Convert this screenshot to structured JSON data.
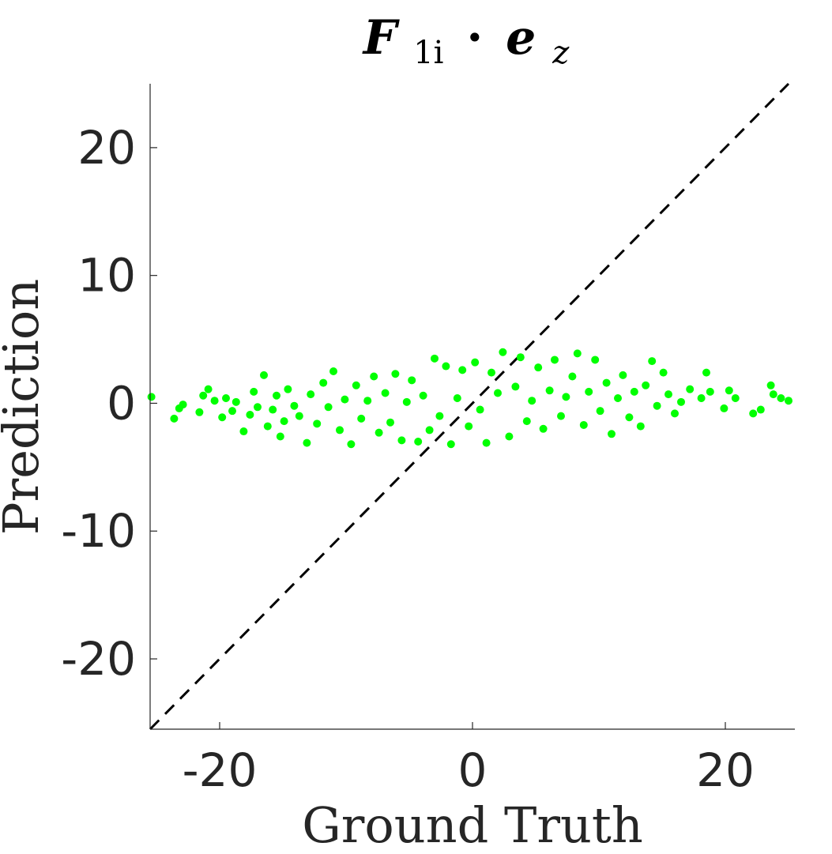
{
  "chart_data": {
    "type": "scatter",
    "title": {
      "symbol": "F",
      "subscript": "1i",
      "operator": "·",
      "vector": "e",
      "vector_subscript": "z"
    },
    "xlabel": "Ground Truth",
    "ylabel": "Prediction",
    "xlim": [
      -25.5,
      25.5
    ],
    "ylim": [
      -25.5,
      25
    ],
    "xticks": [
      -20,
      0,
      20
    ],
    "yticks": [
      20,
      10,
      0,
      -10,
      -20
    ],
    "xtick_labels": [
      "-20",
      "0",
      "20"
    ],
    "ytick_labels": [
      "20",
      "10",
      "0",
      "-10",
      "-20"
    ],
    "grid": false,
    "legend": "none",
    "reference_line": {
      "style": "dashed",
      "color": "#000000",
      "x": [
        -25.5,
        25
      ],
      "y": [
        -25.5,
        25
      ]
    },
    "series": [
      {
        "marker_color": "#00ff00",
        "approx_point_count": 3000,
        "x_range": [
          -25.5,
          25
        ],
        "y_range": [
          -3.3,
          4.0
        ],
        "points": [
          [
            -25.4,
            0.5
          ],
          [
            -23.6,
            -1.2
          ],
          [
            -23.2,
            -0.4
          ],
          [
            -22.9,
            -0.1
          ],
          [
            -21.6,
            -0.7
          ],
          [
            -21.3,
            0.6
          ],
          [
            -20.9,
            1.1
          ],
          [
            -20.4,
            0.2
          ],
          [
            -19.8,
            -1.1
          ],
          [
            -19.5,
            0.4
          ],
          [
            -19.0,
            -0.6
          ],
          [
            -18.7,
            0.1
          ],
          [
            -18.1,
            -2.2
          ],
          [
            -17.6,
            -0.9
          ],
          [
            -17.3,
            0.9
          ],
          [
            -17.0,
            -0.3
          ],
          [
            -16.5,
            2.2
          ],
          [
            -16.2,
            -1.8
          ],
          [
            -15.8,
            -0.5
          ],
          [
            -15.5,
            0.6
          ],
          [
            -15.2,
            -2.6
          ],
          [
            -14.9,
            -1.4
          ],
          [
            -14.6,
            1.1
          ],
          [
            -14.1,
            -0.2
          ],
          [
            -13.7,
            -1.0
          ],
          [
            -13.1,
            -3.1
          ],
          [
            -12.8,
            0.7
          ],
          [
            -12.3,
            -1.6
          ],
          [
            -11.8,
            1.6
          ],
          [
            -11.4,
            -0.3
          ],
          [
            -11.0,
            2.5
          ],
          [
            -10.5,
            -2.1
          ],
          [
            -10.1,
            0.3
          ],
          [
            -9.6,
            -3.2
          ],
          [
            -9.2,
            1.4
          ],
          [
            -8.8,
            -1.2
          ],
          [
            -8.3,
            0.2
          ],
          [
            -7.8,
            2.1
          ],
          [
            -7.4,
            -2.3
          ],
          [
            -6.9,
            0.8
          ],
          [
            -6.5,
            -1.5
          ],
          [
            -6.1,
            2.3
          ],
          [
            -5.6,
            -2.9
          ],
          [
            -5.2,
            0.1
          ],
          [
            -4.8,
            1.8
          ],
          [
            -4.3,
            -3.0
          ],
          [
            -3.9,
            0.6
          ],
          [
            -3.4,
            -2.1
          ],
          [
            -3.0,
            3.5
          ],
          [
            -2.6,
            -1.0
          ],
          [
            -2.1,
            2.9
          ],
          [
            -1.7,
            -3.2
          ],
          [
            -1.2,
            0.4
          ],
          [
            -0.8,
            2.6
          ],
          [
            -0.3,
            -1.8
          ],
          [
            0.2,
            3.2
          ],
          [
            0.6,
            -0.5
          ],
          [
            1.1,
            -3.1
          ],
          [
            1.5,
            2.4
          ],
          [
            2.0,
            0.8
          ],
          [
            2.4,
            4.0
          ],
          [
            2.9,
            -2.6
          ],
          [
            3.4,
            1.3
          ],
          [
            3.8,
            3.6
          ],
          [
            4.3,
            -1.4
          ],
          [
            4.7,
            0.2
          ],
          [
            5.2,
            2.8
          ],
          [
            5.6,
            -2.0
          ],
          [
            6.1,
            1.0
          ],
          [
            6.5,
            3.4
          ],
          [
            7.0,
            -1.0
          ],
          [
            7.4,
            0.5
          ],
          [
            7.9,
            2.1
          ],
          [
            8.3,
            3.9
          ],
          [
            8.8,
            -1.7
          ],
          [
            9.2,
            0.9
          ],
          [
            9.7,
            3.4
          ],
          [
            10.1,
            -0.6
          ],
          [
            10.6,
            1.6
          ],
          [
            11.0,
            -2.4
          ],
          [
            11.5,
            0.4
          ],
          [
            11.9,
            2.2
          ],
          [
            12.4,
            -1.1
          ],
          [
            12.8,
            0.9
          ],
          [
            13.3,
            -1.8
          ],
          [
            13.7,
            1.4
          ],
          [
            14.2,
            3.3
          ],
          [
            14.6,
            -0.2
          ],
          [
            15.1,
            2.4
          ],
          [
            15.5,
            0.7
          ],
          [
            16.0,
            -0.8
          ],
          [
            16.5,
            0.1
          ],
          [
            17.2,
            1.1
          ],
          [
            18.1,
            0.4
          ],
          [
            18.5,
            2.4
          ],
          [
            18.8,
            0.9
          ],
          [
            19.9,
            -0.4
          ],
          [
            20.3,
            1.0
          ],
          [
            20.8,
            0.4
          ],
          [
            22.2,
            -0.8
          ],
          [
            22.8,
            -0.5
          ],
          [
            23.6,
            1.4
          ],
          [
            23.8,
            0.7
          ],
          [
            24.4,
            0.4
          ],
          [
            25.0,
            0.2
          ]
        ]
      }
    ]
  }
}
